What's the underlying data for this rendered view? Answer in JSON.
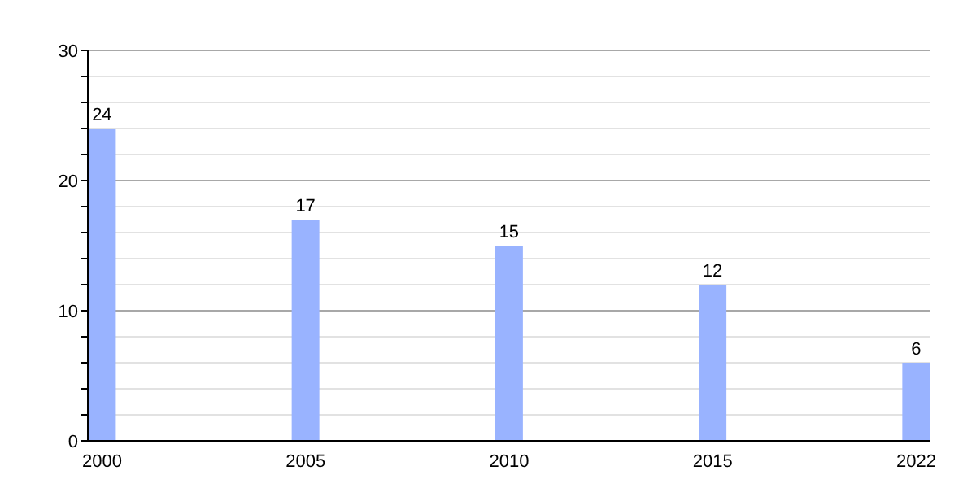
{
  "chart_data": {
    "type": "bar",
    "categories": [
      "2000",
      "2005",
      "2010",
      "2015",
      "2022"
    ],
    "values": [
      24,
      17,
      15,
      12,
      6
    ],
    "color": "#99b3ff",
    "ylim": [
      0,
      30
    ],
    "yticks": [
      0,
      {
        "value": 2,
        "label": null
      },
      {
        "value": 4,
        "label": null
      },
      {
        "value": 6,
        "label": null
      },
      {
        "value": 8,
        "label": null
      },
      10,
      {
        "value": 12,
        "label": null
      },
      {
        "value": 14,
        "label": null
      },
      {
        "value": 16,
        "label": null
      },
      {
        "value": 18,
        "label": null
      },
      20,
      {
        "value": 22,
        "label": null
      },
      {
        "value": 24,
        "label": null
      },
      {
        "value": 26,
        "label": null
      },
      {
        "value": 28,
        "label": null
      },
      30
    ],
    "grid": "y",
    "data_labels": true
  }
}
